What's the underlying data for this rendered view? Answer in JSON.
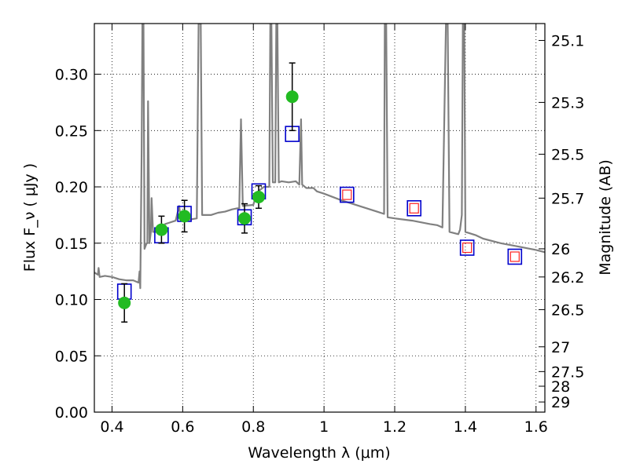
{
  "chart_data": {
    "type": "scatter",
    "title": "",
    "xlabel": "Wavelength  λ (μm)",
    "ylabel": "Flux  F_ν  ( μJy )",
    "ylabel_right": "Magnitude (AB)",
    "xlim": [
      0.35,
      1.625
    ],
    "ylim": [
      0.0,
      0.345
    ],
    "grid": true,
    "x_ticks": [
      0.4,
      0.6,
      0.8,
      1.0,
      1.2,
      1.4,
      1.6
    ],
    "x_tick_labels": [
      "0.4",
      "0.6",
      "0.8",
      "1",
      "1.2",
      "1.4",
      "1.6"
    ],
    "y_ticks": [
      0.0,
      0.05,
      0.1,
      0.15,
      0.2,
      0.25,
      0.3
    ],
    "y_tick_labels": [
      "0.00",
      "0.05",
      "0.10",
      "0.15",
      "0.20",
      "0.25",
      "0.30"
    ],
    "right_ticks": [
      {
        "label": "25.1",
        "flux": 0.33
      },
      {
        "label": "25.3",
        "flux": 0.275
      },
      {
        "label": "25.5",
        "flux": 0.229
      },
      {
        "label": "25.7",
        "flux": 0.19
      },
      {
        "label": "26",
        "flux": 0.145
      },
      {
        "label": "26.2",
        "flux": 0.12
      },
      {
        "label": "26.5",
        "flux": 0.091
      },
      {
        "label": "27",
        "flux": 0.058
      },
      {
        "label": "27.5",
        "flux": 0.036
      },
      {
        "label": "28",
        "flux": 0.023
      },
      {
        "label": "29",
        "flux": 0.009
      }
    ],
    "series": [
      {
        "kind": "model_spectrum",
        "color": "#808080",
        "points": [
          [
            0.35,
            0.124
          ],
          [
            0.36,
            0.122
          ],
          [
            0.362,
            0.128
          ],
          [
            0.365,
            0.12
          ],
          [
            0.38,
            0.121
          ],
          [
            0.4,
            0.12
          ],
          [
            0.42,
            0.118
          ],
          [
            0.44,
            0.117
          ],
          [
            0.46,
            0.117
          ],
          [
            0.475,
            0.115
          ],
          [
            0.478,
            0.125
          ],
          [
            0.48,
            0.11
          ],
          [
            0.484,
            0.235
          ],
          [
            0.486,
            0.345
          ],
          [
            0.489,
            0.345
          ],
          [
            0.492,
            0.145
          ],
          [
            0.498,
            0.15
          ],
          [
            0.5,
            0.15
          ],
          [
            0.502,
            0.276
          ],
          [
            0.506,
            0.15
          ],
          [
            0.51,
            0.16
          ],
          [
            0.512,
            0.19
          ],
          [
            0.516,
            0.16
          ],
          [
            0.53,
            0.16
          ],
          [
            0.545,
            0.163
          ],
          [
            0.55,
            0.167
          ],
          [
            0.56,
            0.168
          ],
          [
            0.58,
            0.17
          ],
          [
            0.59,
            0.183
          ],
          [
            0.595,
            0.17
          ],
          [
            0.62,
            0.171
          ],
          [
            0.64,
            0.172
          ],
          [
            0.645,
            0.345
          ],
          [
            0.648,
            0.345
          ],
          [
            0.651,
            0.345
          ],
          [
            0.655,
            0.175
          ],
          [
            0.68,
            0.175
          ],
          [
            0.7,
            0.177
          ],
          [
            0.72,
            0.178
          ],
          [
            0.74,
            0.18
          ],
          [
            0.755,
            0.181
          ],
          [
            0.76,
            0.181
          ],
          [
            0.765,
            0.26
          ],
          [
            0.77,
            0.183
          ],
          [
            0.8,
            0.184
          ],
          [
            0.81,
            0.195
          ],
          [
            0.83,
            0.2
          ],
          [
            0.845,
            0.2
          ],
          [
            0.848,
            0.345
          ],
          [
            0.851,
            0.345
          ],
          [
            0.855,
            0.204
          ],
          [
            0.862,
            0.204
          ],
          [
            0.865,
            0.345
          ],
          [
            0.868,
            0.345
          ],
          [
            0.872,
            0.204
          ],
          [
            0.88,
            0.205
          ],
          [
            0.9,
            0.204
          ],
          [
            0.92,
            0.205
          ],
          [
            0.93,
            0.202
          ],
          [
            0.935,
            0.26
          ],
          [
            0.938,
            0.202
          ],
          [
            0.95,
            0.199
          ],
          [
            0.97,
            0.199
          ],
          [
            0.98,
            0.196
          ],
          [
            1.0,
            0.194
          ],
          [
            1.05,
            0.188
          ],
          [
            1.1,
            0.183
          ],
          [
            1.15,
            0.178
          ],
          [
            1.17,
            0.176
          ],
          [
            1.172,
            0.345
          ],
          [
            1.176,
            0.345
          ],
          [
            1.18,
            0.173
          ],
          [
            1.2,
            0.172
          ],
          [
            1.25,
            0.17
          ],
          [
            1.3,
            0.167
          ],
          [
            1.32,
            0.166
          ],
          [
            1.335,
            0.164
          ],
          [
            1.345,
            0.345
          ],
          [
            1.35,
            0.345
          ],
          [
            1.355,
            0.16
          ],
          [
            1.38,
            0.158
          ],
          [
            1.385,
            0.162
          ],
          [
            1.39,
            0.175
          ],
          [
            1.393,
            0.345
          ],
          [
            1.397,
            0.345
          ],
          [
            1.4,
            0.16
          ],
          [
            1.43,
            0.157
          ],
          [
            1.45,
            0.154
          ],
          [
            1.5,
            0.15
          ],
          [
            1.55,
            0.147
          ],
          [
            1.6,
            0.144
          ],
          [
            1.625,
            0.142
          ]
        ]
      },
      {
        "kind": "synthetic_photometry",
        "marker": "open-square",
        "edgecolor": "#0000cc",
        "points": [
          [
            0.435,
            0.107
          ],
          [
            0.54,
            0.157
          ],
          [
            0.605,
            0.176
          ],
          [
            0.775,
            0.173
          ],
          [
            0.815,
            0.196
          ],
          [
            0.91,
            0.247
          ],
          [
            1.065,
            0.193
          ],
          [
            1.255,
            0.181
          ],
          [
            1.405,
            0.146
          ],
          [
            1.54,
            0.138
          ]
        ]
      },
      {
        "kind": "synthetic_photometry_nir",
        "marker": "small-open-square",
        "edgecolor": "#ff2222",
        "points": [
          [
            1.065,
            0.193
          ],
          [
            1.255,
            0.181
          ],
          [
            1.405,
            0.146
          ],
          [
            1.54,
            0.138
          ]
        ]
      },
      {
        "kind": "observed_photometry",
        "marker": "filled-circle",
        "color": "#22bb22",
        "points": [
          {
            "x": 0.435,
            "y": 0.097,
            "err": 0.017
          },
          {
            "x": 0.54,
            "y": 0.162,
            "err": 0.012
          },
          {
            "x": 0.605,
            "y": 0.174,
            "err": 0.014
          },
          {
            "x": 0.775,
            "y": 0.172,
            "err": 0.013
          },
          {
            "x": 0.815,
            "y": 0.191,
            "err": 0.01
          },
          {
            "x": 0.91,
            "y": 0.28,
            "err": 0.03
          }
        ]
      }
    ]
  }
}
